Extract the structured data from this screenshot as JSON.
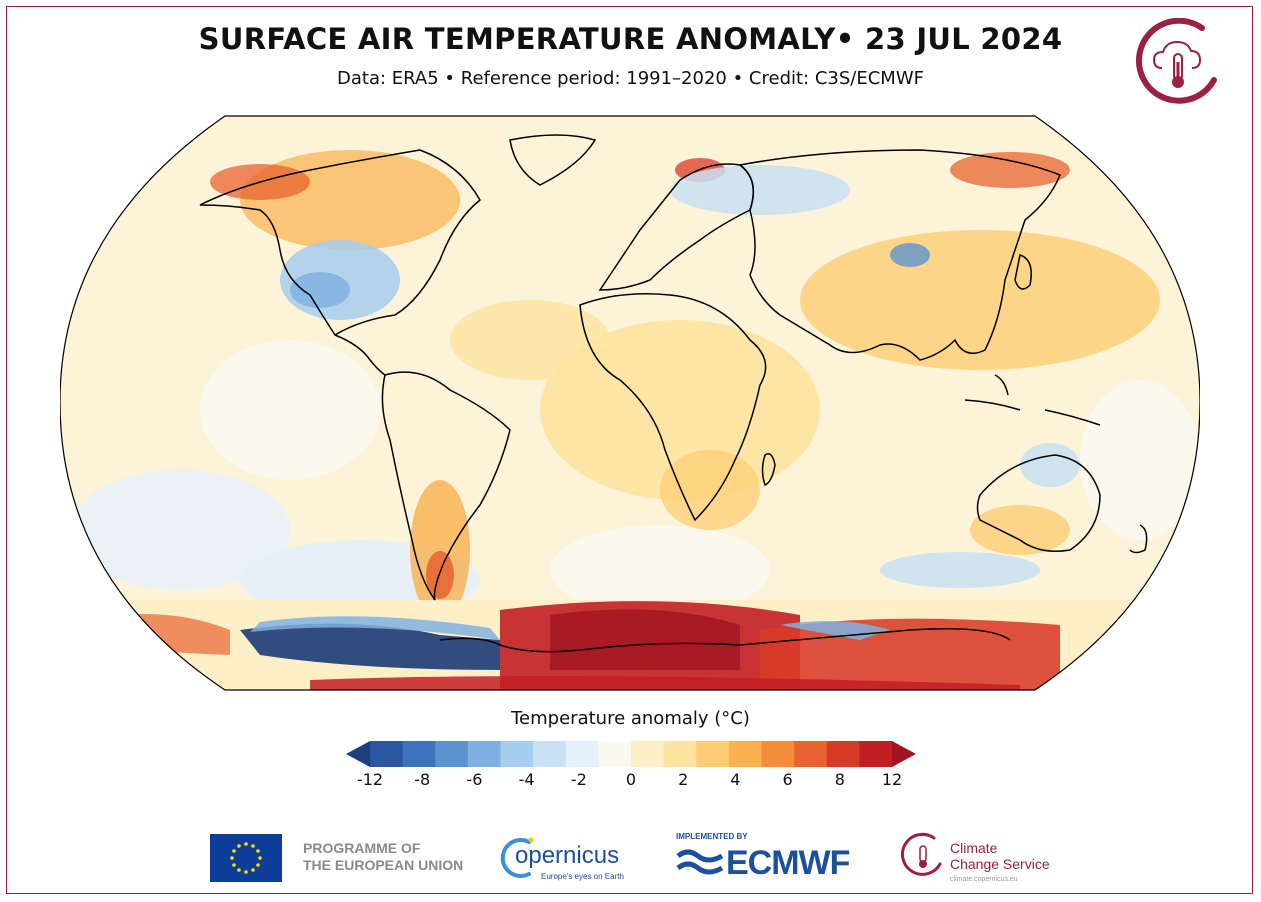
{
  "header": {
    "title": "SURFACE AIR TEMPERATURE ANOMALY• 23 JUL 2024",
    "subtitle": "Data: ERA5 • Reference period: 1991–2020 • Credit: C3S/ECMWF"
  },
  "map": {
    "projection": "Robinson",
    "variable": "Surface air temperature anomaly",
    "notable_regions": [
      {
        "region": "Antarctica (East)",
        "anomaly": "very warm"
      },
      {
        "region": "Antarctica (West / Weddell-Bellingshausen)",
        "anomaly": "very cold"
      },
      {
        "region": "Southern South America",
        "anomaly": "warm"
      },
      {
        "region": "Western North America",
        "anomaly": "warm"
      },
      {
        "region": "Central North America",
        "anomaly": "cool"
      },
      {
        "region": "Northern Scandinavia",
        "anomaly": "warm"
      },
      {
        "region": "Eastern Siberia",
        "anomaly": "warm"
      }
    ]
  },
  "colorbar": {
    "title": "Temperature anomaly (°C)",
    "colors": [
      "#1f3f7a",
      "#2a57a0",
      "#3c74bb",
      "#5b93cf",
      "#7fb1e0",
      "#a6cdee",
      "#c8e1f5",
      "#e4f0fa",
      "#fbfaf0",
      "#fdf0c8",
      "#fde3a0",
      "#fccd74",
      "#f9b04f",
      "#f38c3b",
      "#e8632f",
      "#d93b29",
      "#c21f24",
      "#a01420"
    ],
    "tick_labels": [
      "-12",
      "-8",
      "-6",
      "-4",
      "-2",
      "0",
      "2",
      "4",
      "6",
      "8",
      "12"
    ]
  },
  "footer": {
    "eu_programme": [
      "PROGRAMME OF",
      "THE EUROPEAN UNION"
    ],
    "copernicus_word": "opernicus",
    "copernicus_tagline": "Europe's eyes on Earth",
    "ecmwf_implemented": "IMPLEMENTED BY",
    "ecmwf_word": "ECMWF",
    "c3s_lines": [
      "Climate",
      "Change Service"
    ],
    "c3s_url": "climate.copernicus.eu"
  }
}
